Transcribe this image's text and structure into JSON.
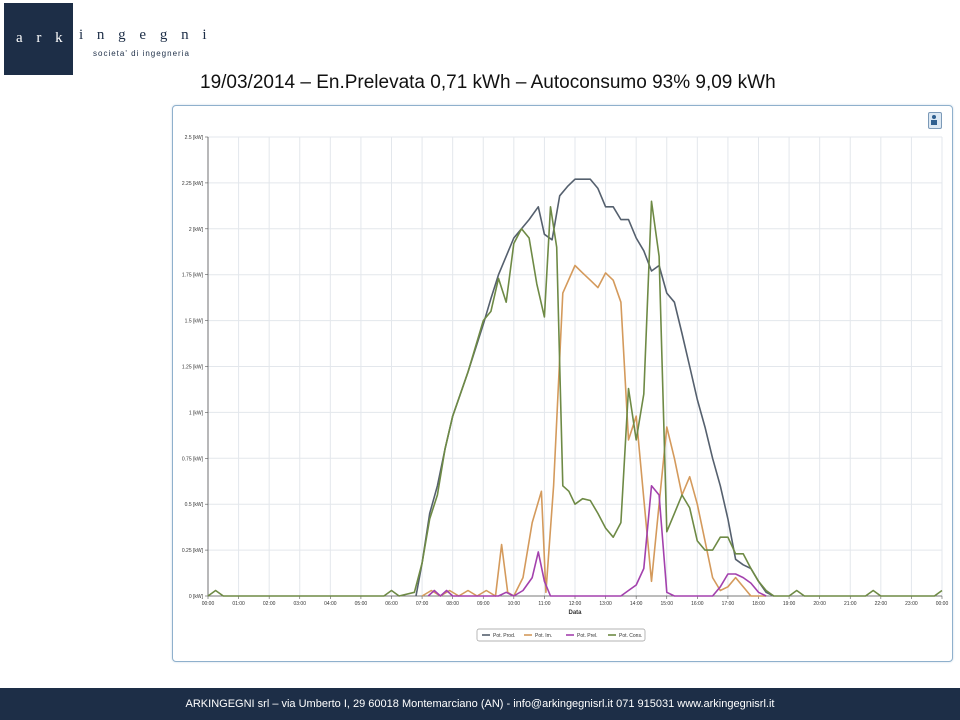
{
  "logo": {
    "ark": "a r k",
    "name": "i n g e g n i",
    "tagline": "societa' di ingegneria"
  },
  "slide_title": "19/03/2014 – En.Prelevata 0,71 kWh – Autoconsumo 93% 9,09 kWh",
  "footer": "ARKINGEGNI srl – via Umberto I, 29 60018 Montemarciano (AN) - info@arkingegnisrl.it 071 915031 www.arkingegnisrl.it",
  "chart_data": {
    "type": "line",
    "title": "",
    "xlabel": "Data",
    "ylabel": "",
    "xlim": [
      0,
      24
    ],
    "ylim": [
      0,
      2.5
    ],
    "grid": true,
    "legend_position": "bottom-center",
    "x_tick_labels": [
      "00:00",
      "01:00",
      "02:00",
      "03:00",
      "04:00",
      "05:00",
      "06:00",
      "07:00",
      "08:00",
      "09:00",
      "10:00",
      "11:00",
      "12:00",
      "13:00",
      "14:00",
      "15:00",
      "16:00",
      "17:00",
      "18:00",
      "19:00",
      "20:00",
      "21:00",
      "22:00",
      "23:00",
      "00:00"
    ],
    "y_ticks": [
      0,
      0.25,
      0.5,
      0.75,
      1,
      1.25,
      1.5,
      1.75,
      2,
      2.25,
      2.5
    ],
    "y_tick_labels": [
      "0 [kW]",
      "0.25 [kW]",
      "0.5 [kW]",
      "0.75 [kW]",
      "1 [kW]",
      "1.25 [kW]",
      "1.5 [kW]",
      "1.75 [kW]",
      "2 [kW]",
      "2.25 [kW]",
      "2.5 [kW]"
    ],
    "series": [
      {
        "name": "Pot. Prod.",
        "color": "#55606e",
        "points": [
          [
            6.8,
            0
          ],
          [
            7,
            0.18
          ],
          [
            7.25,
            0.45
          ],
          [
            7.5,
            0.6
          ],
          [
            7.75,
            0.8
          ],
          [
            8,
            0.98
          ],
          [
            8.5,
            1.22
          ],
          [
            9,
            1.48
          ],
          [
            9.25,
            1.62
          ],
          [
            9.5,
            1.75
          ],
          [
            10,
            1.95
          ],
          [
            10.5,
            2.05
          ],
          [
            10.8,
            2.12
          ],
          [
            11,
            1.97
          ],
          [
            11.25,
            1.94
          ],
          [
            11.5,
            2.18
          ],
          [
            11.75,
            2.23
          ],
          [
            12,
            2.27
          ],
          [
            12.5,
            2.27
          ],
          [
            12.75,
            2.22
          ],
          [
            13,
            2.12
          ],
          [
            13.25,
            2.12
          ],
          [
            13.5,
            2.05
          ],
          [
            13.75,
            2.05
          ],
          [
            14,
            1.95
          ],
          [
            14.25,
            1.88
          ],
          [
            14.5,
            1.77
          ],
          [
            14.75,
            1.8
          ],
          [
            15,
            1.65
          ],
          [
            15.25,
            1.6
          ],
          [
            15.5,
            1.43
          ],
          [
            15.75,
            1.25
          ],
          [
            16,
            1.07
          ],
          [
            16.25,
            0.92
          ],
          [
            16.5,
            0.75
          ],
          [
            16.75,
            0.6
          ],
          [
            17,
            0.42
          ],
          [
            17.25,
            0.2
          ],
          [
            17.5,
            0.17
          ],
          [
            17.75,
            0.15
          ],
          [
            18,
            0.08
          ],
          [
            18.25,
            0.02
          ],
          [
            18.5,
            0
          ]
        ]
      },
      {
        "name": "Pot. Im.",
        "color": "#d49a5c",
        "points": [
          [
            7,
            0
          ],
          [
            7.3,
            0.03
          ],
          [
            7.6,
            0
          ],
          [
            7.9,
            0.03
          ],
          [
            8.2,
            0
          ],
          [
            8.5,
            0.03
          ],
          [
            8.8,
            0
          ],
          [
            9.1,
            0.03
          ],
          [
            9.4,
            0
          ],
          [
            9.6,
            0.28
          ],
          [
            9.8,
            0.02
          ],
          [
            10,
            0
          ],
          [
            10.3,
            0.1
          ],
          [
            10.6,
            0.4
          ],
          [
            10.9,
            0.57
          ],
          [
            11.05,
            0.02
          ],
          [
            11.3,
            0.6
          ],
          [
            11.6,
            1.65
          ],
          [
            12,
            1.8
          ],
          [
            12.25,
            1.76
          ],
          [
            12.5,
            1.72
          ],
          [
            12.75,
            1.68
          ],
          [
            13,
            1.76
          ],
          [
            13.25,
            1.72
          ],
          [
            13.5,
            1.6
          ],
          [
            13.75,
            0.85
          ],
          [
            14,
            0.98
          ],
          [
            14.25,
            0.53
          ],
          [
            14.5,
            0.08
          ],
          [
            14.75,
            0.5
          ],
          [
            15,
            0.92
          ],
          [
            15.25,
            0.75
          ],
          [
            15.5,
            0.55
          ],
          [
            15.75,
            0.65
          ],
          [
            16,
            0.5
          ],
          [
            16.25,
            0.3
          ],
          [
            16.5,
            0.1
          ],
          [
            16.75,
            0.03
          ],
          [
            17,
            0.05
          ],
          [
            17.25,
            0.1
          ],
          [
            17.5,
            0.05
          ],
          [
            17.75,
            0
          ],
          [
            18.25,
            0
          ]
        ]
      },
      {
        "name": "Pot. Prel.",
        "color": "#a341ad",
        "points": [
          [
            7.2,
            0
          ],
          [
            7.4,
            0.03
          ],
          [
            7.6,
            0
          ],
          [
            7.8,
            0.03
          ],
          [
            8,
            0
          ],
          [
            9.5,
            0
          ],
          [
            9.75,
            0.02
          ],
          [
            10,
            0
          ],
          [
            10.3,
            0.03
          ],
          [
            10.6,
            0.1
          ],
          [
            10.8,
            0.24
          ],
          [
            11,
            0.08
          ],
          [
            11.2,
            0
          ],
          [
            13.5,
            0
          ],
          [
            13.75,
            0.03
          ],
          [
            14,
            0.06
          ],
          [
            14.25,
            0.15
          ],
          [
            14.5,
            0.6
          ],
          [
            14.75,
            0.55
          ],
          [
            15,
            0.02
          ],
          [
            15.25,
            0
          ],
          [
            16.5,
            0
          ],
          [
            16.75,
            0.05
          ],
          [
            17,
            0.12
          ],
          [
            17.25,
            0.12
          ],
          [
            17.5,
            0.1
          ],
          [
            17.75,
            0.07
          ],
          [
            18,
            0.02
          ],
          [
            18.25,
            0
          ]
        ]
      },
      {
        "name": "Pot. Cons.",
        "color": "#6e8a45",
        "points": [
          [
            0,
            0
          ],
          [
            0.25,
            0.03
          ],
          [
            0.5,
            0
          ],
          [
            5.75,
            0
          ],
          [
            6,
            0.03
          ],
          [
            6.25,
            0
          ],
          [
            6.75,
            0.02
          ],
          [
            7,
            0.18
          ],
          [
            7.25,
            0.42
          ],
          [
            7.5,
            0.55
          ],
          [
            7.75,
            0.8
          ],
          [
            8,
            0.98
          ],
          [
            8.5,
            1.22
          ],
          [
            9,
            1.5
          ],
          [
            9.25,
            1.55
          ],
          [
            9.5,
            1.73
          ],
          [
            9.75,
            1.6
          ],
          [
            10,
            1.92
          ],
          [
            10.25,
            2.0
          ],
          [
            10.5,
            1.95
          ],
          [
            10.75,
            1.7
          ],
          [
            11,
            1.52
          ],
          [
            11.2,
            2.12
          ],
          [
            11.4,
            1.9
          ],
          [
            11.6,
            0.6
          ],
          [
            11.8,
            0.57
          ],
          [
            12,
            0.5
          ],
          [
            12.25,
            0.53
          ],
          [
            12.5,
            0.52
          ],
          [
            12.75,
            0.45
          ],
          [
            13,
            0.37
          ],
          [
            13.25,
            0.32
          ],
          [
            13.5,
            0.4
          ],
          [
            13.75,
            1.13
          ],
          [
            14,
            0.85
          ],
          [
            14.25,
            1.1
          ],
          [
            14.5,
            2.15
          ],
          [
            14.75,
            1.85
          ],
          [
            15,
            0.35
          ],
          [
            15.25,
            0.45
          ],
          [
            15.5,
            0.55
          ],
          [
            15.75,
            0.48
          ],
          [
            16,
            0.3
          ],
          [
            16.25,
            0.25
          ],
          [
            16.5,
            0.25
          ],
          [
            16.75,
            0.32
          ],
          [
            17,
            0.32
          ],
          [
            17.25,
            0.23
          ],
          [
            17.5,
            0.23
          ],
          [
            17.75,
            0.15
          ],
          [
            18,
            0.08
          ],
          [
            18.25,
            0.03
          ],
          [
            18.5,
            0
          ],
          [
            19,
            0
          ],
          [
            19.25,
            0.03
          ],
          [
            19.5,
            0
          ],
          [
            21.5,
            0
          ],
          [
            21.75,
            0.03
          ],
          [
            22,
            0
          ],
          [
            23.75,
            0
          ],
          [
            24,
            0.03
          ]
        ]
      }
    ]
  }
}
